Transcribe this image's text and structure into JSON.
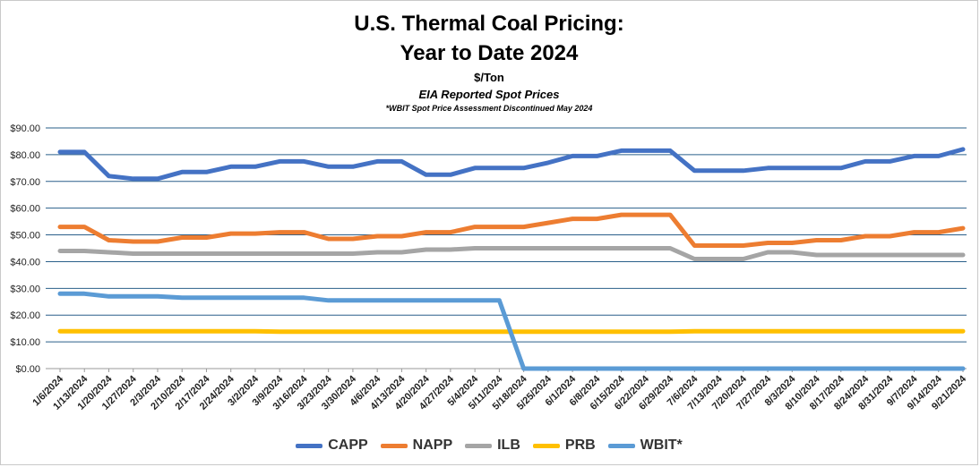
{
  "chart_data": {
    "type": "line",
    "title": "U.S. Thermal Coal Pricing:",
    "title_line2": "Year to Date 2024",
    "subtitle": "$/Ton",
    "subtitle2": "EIA Reported Spot Prices",
    "note": "*WBIT Spot Price Assessment Discontinued May 2024",
    "xlabel": "",
    "ylabel": "",
    "ylim": [
      0,
      90
    ],
    "yticks": [
      "$0.00",
      "$10.00",
      "$20.00",
      "$30.00",
      "$40.00",
      "$50.00",
      "$60.00",
      "$70.00",
      "$80.00",
      "$90.00"
    ],
    "grid": true,
    "legend_position": "bottom",
    "categories": [
      "1/6/2024",
      "1/13/2024",
      "1/20/2024",
      "1/27/2024",
      "2/3/2024",
      "2/10/2024",
      "2/17/2024",
      "2/24/2024",
      "3/2/2024",
      "3/9/2024",
      "3/16/2024",
      "3/23/2024",
      "3/30/2024",
      "4/6/2024",
      "4/13/2024",
      "4/20/2024",
      "4/27/2024",
      "5/4/2024",
      "5/11/2024",
      "5/18/2024",
      "5/25/2024",
      "6/1/2024",
      "6/8/2024",
      "6/15/2024",
      "6/22/2024",
      "6/29/2024",
      "7/6/2024",
      "7/13/2024",
      "7/20/2024",
      "7/27/2024",
      "8/3/2024",
      "8/10/2024",
      "8/17/2024",
      "8/24/2024",
      "8/31/2024",
      "9/7/2024",
      "9/14/2024",
      "9/21/2024"
    ],
    "series": [
      {
        "name": "CAPP",
        "color": "#4472C4",
        "values": [
          81,
          81,
          72,
          71,
          71,
          73.5,
          73.5,
          75.5,
          75.5,
          77.5,
          77.5,
          75.5,
          75.5,
          77.5,
          77.5,
          72.5,
          72.5,
          75,
          75,
          75,
          77,
          79.5,
          79.5,
          81.5,
          81.5,
          81.5,
          74,
          74,
          74,
          75,
          75,
          75,
          75,
          77.5,
          77.5,
          79.5,
          79.5,
          82
        ]
      },
      {
        "name": "NAPP",
        "color": "#ED7D31",
        "values": [
          53,
          53,
          48,
          47.5,
          47.5,
          49,
          49,
          50.5,
          50.5,
          51,
          51,
          48.5,
          48.5,
          49.5,
          49.5,
          51,
          51,
          53,
          53,
          53,
          54.5,
          56,
          56,
          57.5,
          57.5,
          57.5,
          46,
          46,
          46,
          47,
          47,
          48,
          48,
          49.5,
          49.5,
          51,
          51,
          52.5
        ]
      },
      {
        "name": "ILB",
        "color": "#A5A5A5",
        "values": [
          44,
          44,
          43.5,
          43,
          43,
          43,
          43,
          43,
          43,
          43,
          43,
          43,
          43,
          43.5,
          43.5,
          44.5,
          44.5,
          45,
          45,
          45,
          45,
          45,
          45,
          45,
          45,
          45,
          41,
          41,
          41,
          43.5,
          43.5,
          42.5,
          42.5,
          42.5,
          42.5,
          42.5,
          42.5,
          42.5
        ]
      },
      {
        "name": "PRB",
        "color": "#FFC000",
        "values": [
          14,
          14,
          14,
          14,
          14,
          14,
          14,
          14,
          14,
          13.8,
          13.8,
          13.8,
          13.8,
          13.8,
          13.8,
          13.8,
          13.8,
          13.8,
          13.8,
          13.8,
          13.8,
          13.8,
          13.8,
          13.8,
          13.8,
          13.8,
          14,
          14,
          14,
          14,
          14,
          14,
          14,
          14,
          14,
          14,
          14,
          14
        ]
      },
      {
        "name": "WBIT*",
        "color": "#5B9BD5",
        "values": [
          28,
          28,
          27,
          27,
          27,
          26.5,
          26.5,
          26.5,
          26.5,
          26.5,
          26.5,
          25.5,
          25.5,
          25.5,
          25.5,
          25.5,
          25.5,
          25.5,
          25.5,
          0,
          0,
          0,
          0,
          0,
          0,
          0,
          0,
          0,
          0,
          0,
          0,
          0,
          0,
          0,
          0,
          0,
          0,
          0
        ]
      }
    ]
  }
}
